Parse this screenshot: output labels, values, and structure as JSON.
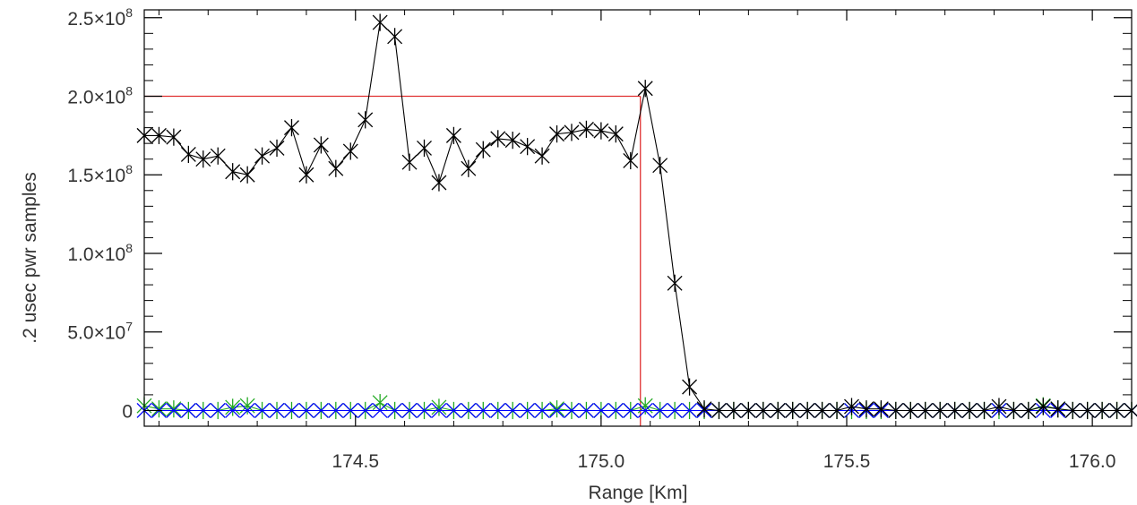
{
  "chart_data": {
    "type": "line",
    "xlabel": "Range [Km]",
    "ylabel": ".2 usec pwr samples",
    "xlim": [
      174.07,
      176.08
    ],
    "ylim": [
      -10000000.0,
      255000000.0
    ],
    "xticks": [
      174.5,
      175.0,
      175.5,
      176.0
    ],
    "xtick_labels": [
      "174.5",
      "175.0",
      "175.5",
      "176.0"
    ],
    "yticks": [
      {
        "value": 0,
        "mantissa": "0",
        "exp": ""
      },
      {
        "value": 50000000.0,
        "mantissa": "5.0×10",
        "exp": "7"
      },
      {
        "value": 100000000.0,
        "mantissa": "1.0×10",
        "exp": "8"
      },
      {
        "value": 150000000.0,
        "mantissa": "1.5×10",
        "exp": "8"
      },
      {
        "value": 200000000.0,
        "mantissa": "2.0×10",
        "exp": "8"
      },
      {
        "value": 250000000.0,
        "mantissa": "2.5×10",
        "exp": "8"
      }
    ],
    "grid": false,
    "series": [
      {
        "color": "#000000",
        "marker": "asterisk",
        "x0": 174.07,
        "dx": 0.03,
        "count": 68,
        "values": [
          175000000.0,
          175000000.0,
          174000000.0,
          163000000.0,
          160000000.0,
          162000000.0,
          152000000.0,
          150000000.0,
          162000000.0,
          167000000.0,
          180000000.0,
          150000000.0,
          169000000.0,
          154000000.0,
          165000000.0,
          185000000.0,
          247000000.0,
          238000000.0,
          158000000.0,
          167000000.0,
          145000000.0,
          175000000.0,
          154000000.0,
          166000000.0,
          173000000.0,
          172000000.0,
          168000000.0,
          162000000.0,
          176000000.0,
          177000000.0,
          179000000.0,
          178000000.0,
          176000000.0,
          159000000.0,
          205000000.0,
          156000000.0,
          81000000.0,
          15000000.0,
          1000000.0,
          0,
          0,
          0,
          0,
          0,
          0,
          0,
          0,
          0,
          2500000.0,
          1000000.0,
          1000000.0,
          0,
          0,
          0,
          0,
          0,
          0,
          0,
          2500000.0,
          0,
          0,
          2500000.0,
          1000000.0,
          0,
          0,
          0,
          0,
          0
        ]
      },
      {
        "color": "#22aa22",
        "marker": "asterisk",
        "x0": 174.07,
        "dx": 0.03,
        "count": 68,
        "values": [
          3000000.0,
          1000000.0,
          1000000.0,
          0,
          0,
          0,
          2000000.0,
          3000000.0,
          0,
          0,
          0,
          0,
          0,
          0,
          0,
          0,
          5000000.0,
          0,
          0,
          0,
          2000000.0,
          0,
          0,
          0,
          0,
          0,
          0,
          0,
          1000000.0,
          0,
          0,
          0,
          0,
          0,
          3000000.0,
          0,
          0,
          0,
          0,
          0,
          0,
          0,
          0,
          0,
          0,
          0,
          0,
          0,
          0,
          0,
          0,
          0,
          0,
          0,
          0,
          0,
          0,
          0,
          0,
          0,
          0,
          3000000.0,
          1000000.0,
          0,
          0,
          0,
          0,
          0
        ]
      },
      {
        "color": "#0000ff",
        "marker": "x",
        "x0": 174.07,
        "dx": 0.03,
        "count": 68,
        "values": [
          0,
          0,
          0,
          0,
          0,
          0,
          0,
          0,
          0,
          0,
          0,
          0,
          0,
          0,
          0,
          0,
          0,
          0,
          0,
          0,
          0,
          0,
          0,
          0,
          0,
          0,
          0,
          0,
          0,
          0,
          0,
          0,
          0,
          0,
          0,
          0,
          0,
          0,
          0,
          0,
          0,
          0,
          0,
          0,
          0,
          0,
          0,
          0,
          0,
          0,
          0,
          0,
          0,
          0,
          0,
          0,
          0,
          0,
          0,
          0,
          0,
          0,
          0,
          0,
          0,
          0,
          0,
          0
        ]
      }
    ],
    "reference_lines": [
      {
        "color": "#e03030",
        "orientation": "horizontal",
        "y": 200000000.0,
        "x_from": 174.07,
        "x_to": 175.08
      },
      {
        "color": "#e03030",
        "orientation": "vertical",
        "x": 175.08,
        "y_from": -10000000.0,
        "y_to": 200000000.0
      }
    ]
  }
}
